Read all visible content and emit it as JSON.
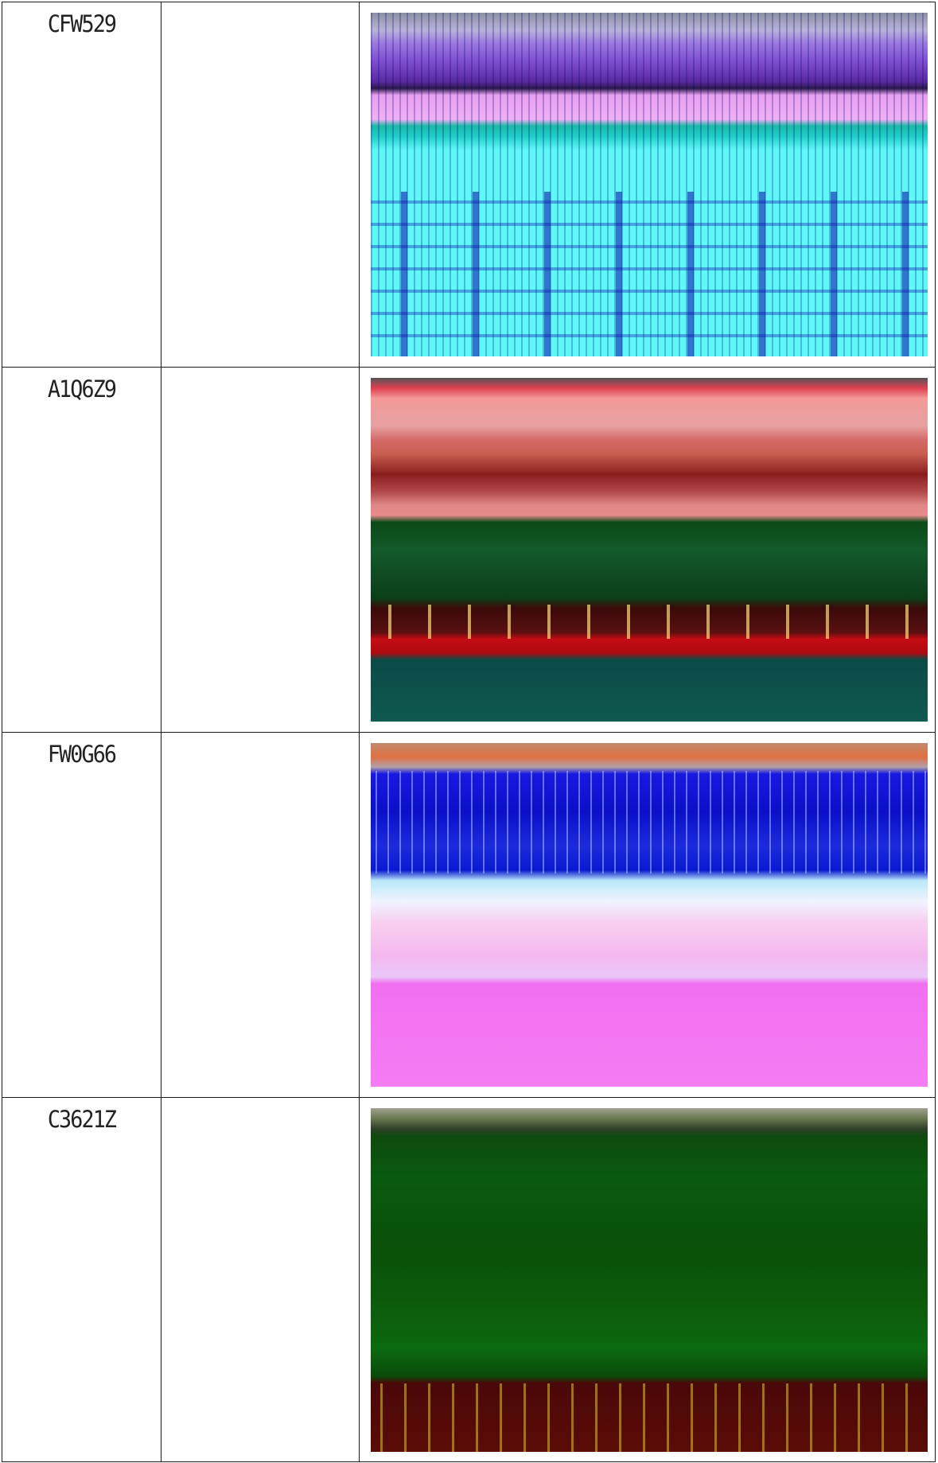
{
  "table": {
    "rows": [
      {
        "plate": "CFW529",
        "note": ""
      },
      {
        "plate": "A1Q6Z9",
        "note": ""
      },
      {
        "plate": "FW0G66",
        "note": ""
      },
      {
        "plate": "C3621Z",
        "note": ""
      }
    ]
  }
}
